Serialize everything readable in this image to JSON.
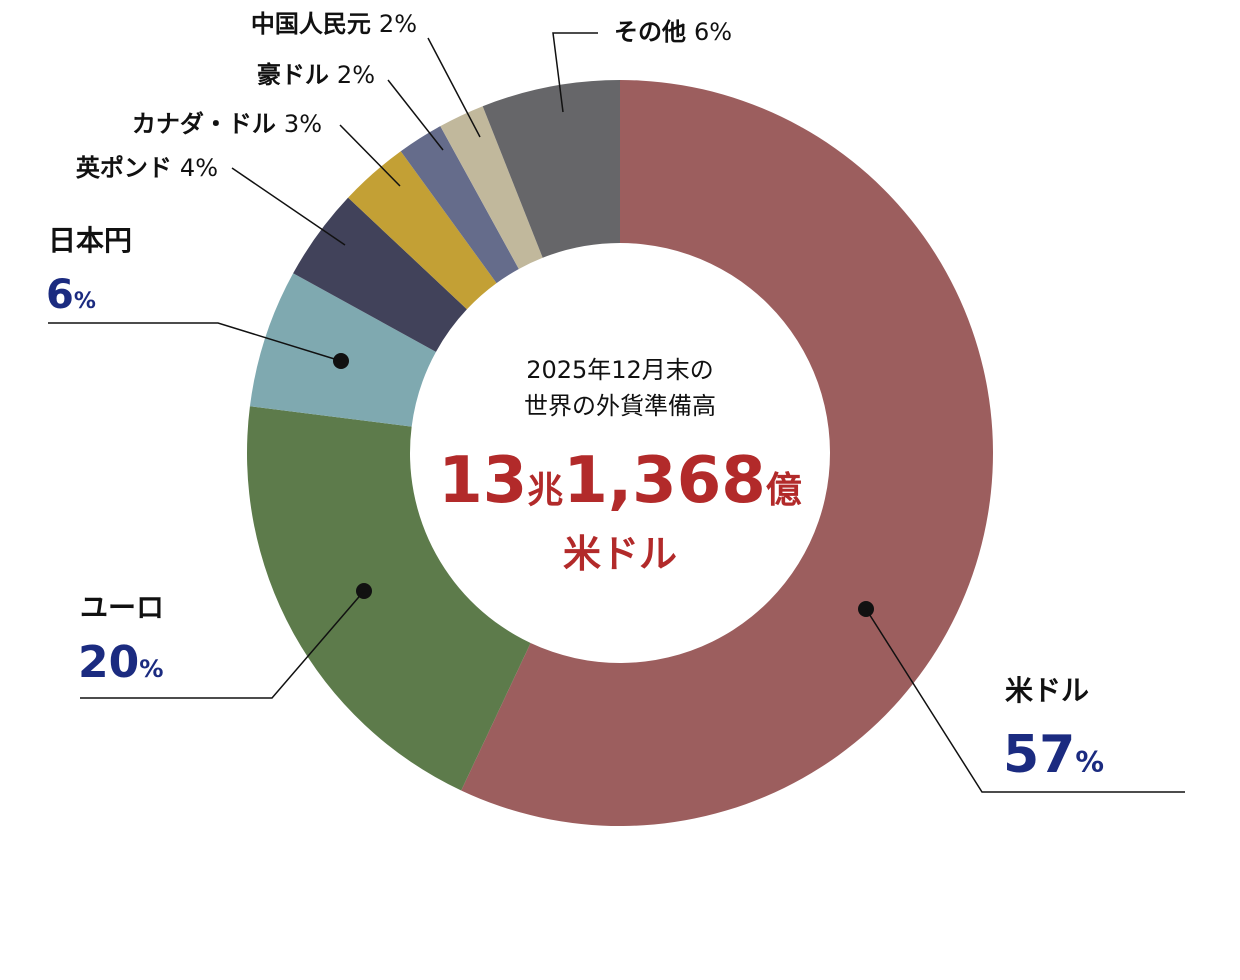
{
  "chart_data": {
    "type": "donut",
    "center_label": [
      "2025年12月末の",
      "世界の外貨準備高"
    ],
    "total_label": "13兆1,368億",
    "total_unit": "米ドル",
    "categories": [
      "米ドル",
      "ユーロ",
      "日本円",
      "英ポンド",
      "カナダ・ドル",
      "豪ドル",
      "中国人民元",
      "その他"
    ],
    "values": [
      57,
      20,
      6,
      4,
      3,
      2,
      2,
      6
    ],
    "value_labels": [
      "57%",
      "20%",
      "6%",
      "4%",
      "3%",
      "2%",
      "2%",
      "6%"
    ],
    "colors": [
      "#9c5e5e",
      "#5d7b4b",
      "#7fa9b0",
      "#41425a",
      "#c3a035",
      "#656c8b",
      "#c1b89c",
      "#666669"
    ]
  }
}
